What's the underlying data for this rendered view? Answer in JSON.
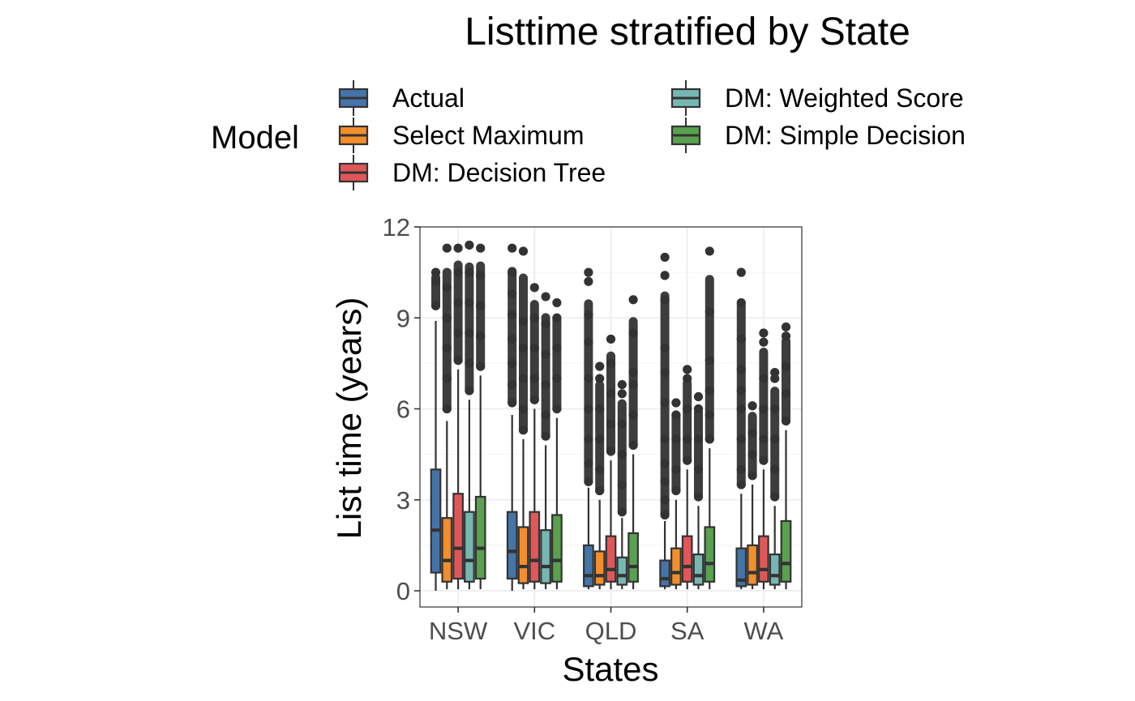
{
  "chart_data": {
    "type": "boxplot",
    "title": "Listtime stratified by State",
    "xlabel": "States",
    "ylabel": "List time (years)",
    "ylim": [
      -0.5,
      12
    ],
    "yticks": [
      0,
      3,
      6,
      9,
      12
    ],
    "categories": [
      "NSW",
      "VIC",
      "QLD",
      "SA",
      "WA"
    ],
    "legend": {
      "title": "Model",
      "placement": "top"
    },
    "grid": true,
    "series": [
      {
        "name": "Actual",
        "color": "#4474a8",
        "boxes": [
          {
            "min": 0,
            "q1": 0.6,
            "median": 2.0,
            "q3": 4.0,
            "max": 8.9,
            "outliers": [
              9.4,
              10.2,
              10.5
            ]
          },
          {
            "min": 0,
            "q1": 0.4,
            "median": 1.3,
            "q3": 2.6,
            "max": 5.8,
            "outliers": [
              6.2,
              6.8,
              7.5,
              8.3,
              9.1,
              9.8,
              10.5,
              11.3
            ]
          },
          {
            "min": 0.05,
            "q1": 0.15,
            "median": 0.5,
            "q3": 1.5,
            "max": 3.4,
            "outliers": [
              3.6,
              4.2,
              5.0,
              6.0,
              7.0,
              8.2,
              9.1,
              10.2,
              10.5
            ]
          },
          {
            "min": 0.05,
            "q1": 0.15,
            "median": 0.4,
            "q3": 1.0,
            "max": 2.3,
            "outliers": [
              2.5,
              3.0,
              3.6,
              4.2,
              5.0,
              6.2,
              7.2,
              8.0,
              9.6,
              10.4,
              11.0
            ]
          },
          {
            "min": 0.05,
            "q1": 0.15,
            "median": 0.35,
            "q3": 1.4,
            "max": 3.2,
            "outliers": [
              3.5,
              4.0,
              5.0,
              6.0,
              6.6,
              7.3,
              8.3,
              9.5,
              10.5
            ]
          }
        ]
      },
      {
        "name": "Select Maximum",
        "color": "#f28e2b",
        "boxes": [
          {
            "min": 0.05,
            "q1": 0.3,
            "median": 1.0,
            "q3": 2.4,
            "max": 5.6,
            "outliers": [
              6.0,
              7.0,
              8.0,
              9.0,
              10.0,
              11.3
            ]
          },
          {
            "min": 0.05,
            "q1": 0.25,
            "median": 0.8,
            "q3": 2.1,
            "max": 5.0,
            "outliers": [
              5.3,
              6.0,
              7.0,
              8.0,
              8.9,
              11.2
            ]
          },
          {
            "min": 0.05,
            "q1": 0.2,
            "median": 0.5,
            "q3": 1.3,
            "max": 3.0,
            "outliers": [
              3.3,
              4.0,
              5.0,
              6.0,
              7.0,
              7.4
            ]
          },
          {
            "min": 0.05,
            "q1": 0.2,
            "median": 0.6,
            "q3": 1.4,
            "max": 3.0,
            "outliers": [
              3.3,
              4.0,
              5.0,
              5.8,
              6.2
            ]
          },
          {
            "min": 0.05,
            "q1": 0.2,
            "median": 0.6,
            "q3": 1.5,
            "max": 3.5,
            "outliers": [
              3.8,
              4.5,
              5.2,
              6.1
            ]
          }
        ]
      },
      {
        "name": "DM: Decision Tree",
        "color": "#e15759",
        "boxes": [
          {
            "min": 0.05,
            "q1": 0.4,
            "median": 1.4,
            "q3": 3.2,
            "max": 7.3,
            "outliers": [
              7.6,
              8.5,
              9.5,
              10.5,
              11.3
            ]
          },
          {
            "min": 0.05,
            "q1": 0.3,
            "median": 1.0,
            "q3": 2.6,
            "max": 6.0,
            "outliers": [
              6.3,
              7.0,
              8.0,
              9.0,
              10.0
            ]
          },
          {
            "min": 0.05,
            "q1": 0.3,
            "median": 0.7,
            "q3": 1.8,
            "max": 4.3,
            "outliers": [
              4.6,
              5.5,
              6.5,
              7.5,
              8.3
            ]
          },
          {
            "min": 0.05,
            "q1": 0.3,
            "median": 0.8,
            "q3": 1.8,
            "max": 4.0,
            "outliers": [
              4.3,
              5.0,
              6.0,
              7.0,
              7.3
            ]
          },
          {
            "min": 0.05,
            "q1": 0.3,
            "median": 0.7,
            "q3": 1.8,
            "max": 4.0,
            "outliers": [
              4.3,
              5.0,
              6.0,
              7.0,
              8.2,
              8.5
            ]
          }
        ]
      },
      {
        "name": "DM: Weighted Score",
        "color": "#76b7b2",
        "boxes": [
          {
            "min": 0.05,
            "q1": 0.3,
            "median": 1.0,
            "q3": 2.6,
            "max": 6.3,
            "outliers": [
              6.6,
              7.5,
              8.5,
              9.5,
              10.5,
              11.4
            ]
          },
          {
            "min": 0.05,
            "q1": 0.25,
            "median": 0.8,
            "q3": 2.0,
            "max": 4.8,
            "outliers": [
              5.1,
              5.8,
              6.8,
              7.8,
              8.8,
              9.7
            ]
          },
          {
            "min": 0.05,
            "q1": 0.2,
            "median": 0.5,
            "q3": 1.1,
            "max": 2.4,
            "outliers": [
              2.6,
              3.5,
              4.5,
              5.5,
              6.5,
              6.8
            ]
          },
          {
            "min": 0.05,
            "q1": 0.2,
            "median": 0.5,
            "q3": 1.2,
            "max": 2.8,
            "outliers": [
              3.1,
              4.0,
              5.0,
              6.0,
              6.4
            ]
          },
          {
            "min": 0.05,
            "q1": 0.2,
            "median": 0.5,
            "q3": 1.2,
            "max": 2.8,
            "outliers": [
              3.1,
              4.0,
              5.0,
              6.0,
              7.0,
              7.2
            ]
          }
        ]
      },
      {
        "name": "DM: Simple Decision",
        "color": "#59a14f",
        "boxes": [
          {
            "min": 0.05,
            "q1": 0.4,
            "median": 1.4,
            "q3": 3.1,
            "max": 7.1,
            "outliers": [
              7.4,
              8.4,
              9.4,
              10.4,
              11.3
            ]
          },
          {
            "min": 0.05,
            "q1": 0.3,
            "median": 1.0,
            "q3": 2.5,
            "max": 5.7,
            "outliers": [
              6.0,
              7.0,
              8.0,
              9.0,
              9.5
            ]
          },
          {
            "min": 0.05,
            "q1": 0.3,
            "median": 0.8,
            "q3": 1.9,
            "max": 4.5,
            "outliers": [
              4.8,
              5.8,
              6.8,
              7.2,
              8.5,
              9.6
            ]
          },
          {
            "min": 0.05,
            "q1": 0.3,
            "median": 0.9,
            "q3": 2.1,
            "max": 4.7,
            "outliers": [
              5.0,
              5.8,
              6.6,
              7.6,
              9.2,
              11.2
            ]
          },
          {
            "min": 0.05,
            "q1": 0.3,
            "median": 0.9,
            "q3": 2.3,
            "max": 5.3,
            "outliers": [
              5.6,
              6.5,
              7.4,
              8.4,
              8.7
            ]
          }
        ]
      }
    ]
  }
}
